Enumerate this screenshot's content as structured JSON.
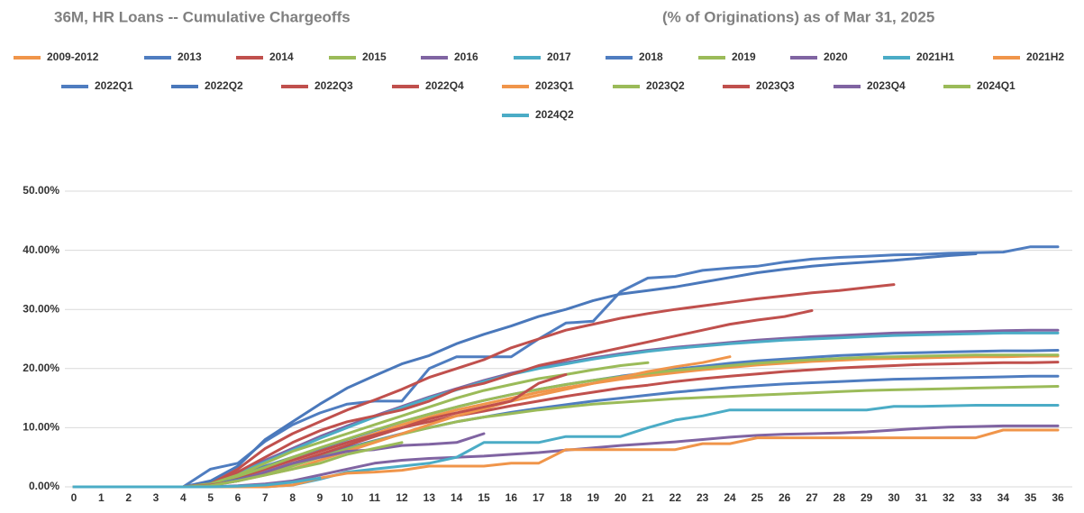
{
  "chart_data": {
    "type": "line",
    "title": "36M, HR Loans -- Cumulative Chargeoffs",
    "subtitle": "(% of Originations) as of Mar 31, 2025",
    "categories": [
      "0",
      "1",
      "2",
      "3",
      "4",
      "5",
      "6",
      "7",
      "8",
      "9",
      "10",
      "11",
      "12",
      "13",
      "14",
      "15",
      "16",
      "17",
      "18",
      "19",
      "20",
      "21",
      "22",
      "23",
      "24",
      "25",
      "26",
      "27",
      "28",
      "29",
      "30",
      "31",
      "32",
      "33",
      "34",
      "35",
      "36"
    ],
    "ylim": [
      0,
      50
    ],
    "yticks": [
      {
        "value": 0,
        "label": "0.00%"
      },
      {
        "value": 10,
        "label": "10.00%"
      },
      {
        "value": 20,
        "label": "20.00%"
      },
      {
        "value": 30,
        "label": "30.00%"
      },
      {
        "value": 40,
        "label": "40.00%"
      },
      {
        "value": 50,
        "label": "50.00%"
      }
    ],
    "grid": true,
    "legend": "top",
    "series": [
      {
        "name": "2009-2012",
        "color": "#f0954a",
        "values": [
          0,
          0,
          0,
          0,
          0,
          0.5,
          1.5,
          3,
          4.5,
          6,
          7.5,
          9,
          10.5,
          11.8,
          13,
          14,
          15,
          16,
          16.8,
          17.5,
          18.2,
          18.8,
          19.3,
          19.8,
          20.2,
          20.6,
          20.9,
          21.2,
          21.4,
          21.6,
          21.7,
          21.8,
          21.9,
          22,
          22,
          22.1,
          22.1
        ]
      },
      {
        "name": "2013",
        "color": "#4f7dc0",
        "values": [
          0,
          0,
          0,
          0,
          0,
          0.8,
          2,
          3.5,
          5,
          6.5,
          8,
          9.5,
          11,
          12.3,
          13.5,
          14.6,
          15.6,
          16.5,
          17.3,
          18,
          18.7,
          19.3,
          19.9,
          20.4,
          20.9,
          21.3,
          21.6,
          21.9,
          22.2,
          22.4,
          22.6,
          22.7,
          22.8,
          22.9,
          23,
          23,
          23.1
        ]
      },
      {
        "name": "2014",
        "color": "#c0504d",
        "values": [
          0,
          0,
          0,
          0,
          0,
          0.5,
          1.5,
          3,
          4.5,
          6,
          7.5,
          8.8,
          10,
          11,
          12,
          12.8,
          13.7,
          14.5,
          15.3,
          16,
          16.7,
          17.2,
          17.8,
          18.3,
          18.7,
          19.1,
          19.5,
          19.8,
          20.1,
          20.3,
          20.5,
          20.7,
          20.8,
          20.9,
          21,
          21,
          21.1
        ]
      },
      {
        "name": "2015",
        "color": "#9bbb59",
        "values": [
          0,
          0,
          0,
          0,
          0,
          0.6,
          1.8,
          3.3,
          5,
          6.6,
          8.1,
          9.6,
          11,
          12.3,
          13.5,
          14.6,
          15.6,
          16.5,
          17.3,
          18,
          18.6,
          19.2,
          19.7,
          20.1,
          20.5,
          20.9,
          21.2,
          21.5,
          21.7,
          21.9,
          22,
          22.1,
          22.2,
          22.3,
          22.3,
          22.3,
          22.3
        ]
      },
      {
        "name": "2016",
        "color": "#8064a2",
        "values": [
          0,
          0,
          0,
          0,
          0,
          0.8,
          2.5,
          4.5,
          6.5,
          8.5,
          10.3,
          12,
          13.6,
          15.2,
          16.6,
          18,
          19.2,
          20.2,
          21,
          21.8,
          22.5,
          23.1,
          23.6,
          24,
          24.4,
          24.8,
          25.1,
          25.4,
          25.6,
          25.8,
          26,
          26.1,
          26.2,
          26.3,
          26.4,
          26.5,
          26.5
        ]
      },
      {
        "name": "2017",
        "color": "#4bacc6",
        "values": [
          0,
          0,
          0,
          0,
          0,
          0.7,
          2.3,
          4.2,
          6.2,
          8.2,
          10,
          11.8,
          13.4,
          15,
          16.4,
          17.8,
          19,
          20,
          20.8,
          21.6,
          22.3,
          22.9,
          23.4,
          23.8,
          24.2,
          24.5,
          24.8,
          25,
          25.2,
          25.4,
          25.6,
          25.7,
          25.8,
          25.9,
          26,
          26,
          26
        ]
      },
      {
        "name": "2018",
        "color": "#4f7dc0",
        "values": [
          0,
          0,
          0,
          0,
          0,
          0.4,
          1.2,
          2.4,
          3.8,
          5.2,
          6.6,
          7.8,
          9,
          10,
          11,
          11.8,
          12.6,
          13.3,
          13.9,
          14.5,
          15,
          15.5,
          16,
          16.4,
          16.8,
          17.1,
          17.4,
          17.6,
          17.8,
          18,
          18.2,
          18.3,
          18.4,
          18.5,
          18.6,
          18.7,
          18.7
        ]
      },
      {
        "name": "2019",
        "color": "#9bbb59",
        "values": [
          0,
          0,
          0,
          0,
          0,
          0.3,
          1,
          2.2,
          3.5,
          5,
          6.4,
          7.7,
          8.9,
          10,
          11,
          11.8,
          12.4,
          13,
          13.5,
          14,
          14.3,
          14.6,
          14.9,
          15.1,
          15.3,
          15.5,
          15.7,
          15.9,
          16.1,
          16.3,
          16.4,
          16.5,
          16.6,
          16.7,
          16.8,
          16.9,
          17
        ]
      },
      {
        "name": "2020",
        "color": "#8064a2",
        "values": [
          0,
          0,
          0,
          0,
          0,
          0,
          0.2,
          0.5,
          1,
          2,
          3,
          4,
          4.5,
          4.8,
          5,
          5.2,
          5.5,
          5.8,
          6.2,
          6.6,
          7,
          7.3,
          7.6,
          8,
          8.4,
          8.7,
          8.9,
          9,
          9.1,
          9.3,
          9.6,
          9.9,
          10.1,
          10.2,
          10.3,
          10.3,
          10.3
        ]
      },
      {
        "name": "2021H1",
        "color": "#4bacc6",
        "values": [
          0,
          0,
          0,
          0,
          0,
          0,
          0,
          0,
          0.3,
          1.3,
          2.5,
          3,
          3.5,
          4,
          5,
          7.5,
          7.5,
          7.5,
          8.5,
          8.5,
          8.5,
          10,
          11.3,
          12,
          13,
          13,
          13,
          13,
          13,
          13,
          13.6,
          13.6,
          13.7,
          13.8,
          13.8,
          13.8,
          13.8
        ]
      },
      {
        "name": "2021H2",
        "color": "#f0954a",
        "values": [
          0,
          0,
          0,
          0,
          0,
          0,
          0,
          0,
          0.3,
          1.5,
          2.3,
          2.5,
          2.8,
          3.5,
          3.5,
          3.5,
          4,
          4,
          6.3,
          6.3,
          6.3,
          6.3,
          6.3,
          7.3,
          7.3,
          8.3,
          8.3,
          8.3,
          8.3,
          8.3,
          8.3,
          8.3,
          8.3,
          8.3,
          9.6,
          9.6,
          9.6
        ]
      },
      {
        "name": "2022Q1",
        "color": "#4f7dc0",
        "values": [
          0,
          0,
          0,
          0,
          0,
          3,
          4,
          7.7,
          10.5,
          12.5,
          14,
          14.5,
          14.5,
          20,
          22,
          22,
          22,
          25,
          27.7,
          28,
          33,
          35.3,
          35.6,
          36.6,
          37,
          37.3,
          38,
          38.5,
          38.8,
          39,
          39.2,
          39.3,
          39.5,
          39.6,
          39.7,
          40.6,
          40.6
        ]
      },
      {
        "name": "2022Q2",
        "color": "#4a78bb",
        "values": [
          0,
          0,
          0,
          0,
          0,
          1,
          3.5,
          8,
          11,
          14,
          16.7,
          18.8,
          20.8,
          22.2,
          24.2,
          25.8,
          27.2,
          28.8,
          30,
          31.5,
          32.6,
          33.2,
          33.8,
          34.6,
          35.4,
          36.2,
          36.8,
          37.3,
          37.7,
          38,
          38.3,
          38.7,
          39.1,
          39.4,
          null,
          null,
          null
        ]
      },
      {
        "name": "2022Q3",
        "color": "#c0504d",
        "values": [
          0,
          0,
          0,
          0,
          0,
          0.5,
          3,
          6.5,
          9,
          11,
          13,
          14.7,
          16.5,
          18.5,
          20,
          21.5,
          23.5,
          25,
          26.5,
          27.5,
          28.5,
          29.3,
          30,
          30.6,
          31.2,
          31.8,
          32.3,
          32.8,
          33.2,
          33.7,
          34.2,
          null,
          null,
          null,
          null,
          null,
          null
        ]
      },
      {
        "name": "2022Q4",
        "color": "#c0504d",
        "values": [
          0,
          0,
          0,
          0,
          0,
          0.5,
          2.5,
          5,
          7.5,
          9.5,
          11,
          12,
          13,
          14.5,
          16.5,
          17.5,
          19,
          20.5,
          21.5,
          22.5,
          23.5,
          24.5,
          25.5,
          26.5,
          27.5,
          28.2,
          28.8,
          29.8,
          null,
          null,
          null,
          null,
          null,
          null,
          null,
          null,
          null
        ]
      },
      {
        "name": "2023Q1",
        "color": "#f0954a",
        "values": [
          0,
          0,
          0,
          0,
          0,
          0.3,
          1,
          2,
          3,
          4.5,
          6,
          7.5,
          9,
          10.5,
          12,
          13.2,
          14.5,
          15.5,
          16.5,
          17.5,
          18.5,
          19.5,
          20.3,
          21,
          22,
          null,
          null,
          null,
          null,
          null,
          null,
          null,
          null,
          null,
          null,
          null,
          null
        ]
      },
      {
        "name": "2023Q2",
        "color": "#9bbb59",
        "values": [
          0,
          0,
          0,
          0,
          0,
          0.5,
          2,
          4,
          6,
          7.5,
          9,
          10.5,
          12,
          13.5,
          15,
          16.3,
          17.3,
          18.3,
          19,
          19.8,
          20.5,
          21,
          null,
          null,
          null,
          null,
          null,
          null,
          null,
          null,
          null,
          null,
          null,
          null,
          null,
          null,
          null
        ]
      },
      {
        "name": "2023Q3",
        "color": "#c0504d",
        "values": [
          0,
          0,
          0,
          0,
          0,
          0.3,
          1,
          2.5,
          4,
          5.5,
          7,
          8.5,
          10,
          11.5,
          12.5,
          13.5,
          14.5,
          17.5,
          19,
          null,
          null,
          null,
          null,
          null,
          null,
          null,
          null,
          null,
          null,
          null,
          null,
          null,
          null,
          null,
          null,
          null,
          null
        ]
      },
      {
        "name": "2023Q4",
        "color": "#8064a2",
        "values": [
          0,
          0,
          0,
          0,
          0,
          0.2,
          1,
          2.5,
          4,
          5,
          6,
          6.3,
          7,
          7.2,
          7.5,
          9,
          null,
          null,
          null,
          null,
          null,
          null,
          null,
          null,
          null,
          null,
          null,
          null,
          null,
          null,
          null,
          null,
          null,
          null,
          null,
          null,
          null
        ]
      },
      {
        "name": "2024Q1",
        "color": "#9bbb59",
        "values": [
          0,
          0,
          0,
          0,
          0,
          0.2,
          1,
          2,
          3,
          4,
          5.5,
          6.5,
          7.5,
          null,
          null,
          null,
          null,
          null,
          null,
          null,
          null,
          null,
          null,
          null,
          null,
          null,
          null,
          null,
          null,
          null,
          null,
          null,
          null,
          null,
          null,
          null,
          null
        ]
      },
      {
        "name": "2024Q2",
        "color": "#4bacc6",
        "values": [
          0,
          0,
          0,
          0,
          0,
          0,
          0.1,
          0.3,
          0.8,
          1.5,
          null,
          null,
          null,
          null,
          null,
          null,
          null,
          null,
          null,
          null,
          null,
          null,
          null,
          null,
          null,
          null,
          null,
          null,
          null,
          null,
          null,
          null,
          null,
          null,
          null,
          null,
          null
        ]
      }
    ]
  }
}
